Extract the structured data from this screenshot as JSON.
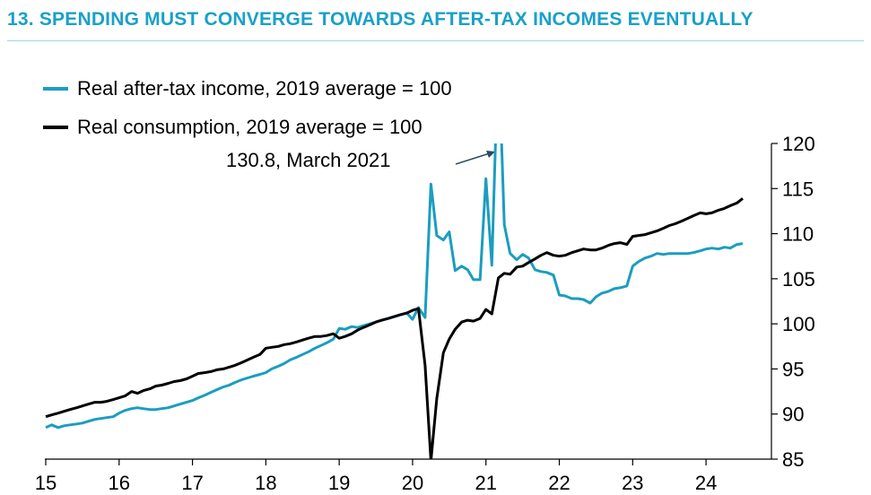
{
  "title": "13. SPENDING MUST CONVERGE TOWARDS AFTER-TAX INCOMES EVENTUALLY",
  "colors": {
    "title": "#1aa0c8",
    "income": "#1b9dc0",
    "consumption": "#000000",
    "axis": "#000000",
    "annotation_arrow": "#2a4a5a"
  },
  "chart_data": {
    "type": "line",
    "title": "13. SPENDING MUST CONVERGE TOWARDS AFTER-TAX INCOMES EVENTUALLY",
    "xlabel": "",
    "ylabel": "",
    "x_ticks": [
      "15",
      "16",
      "17",
      "18",
      "19",
      "20",
      "21",
      "22",
      "23",
      "24"
    ],
    "x_range": [
      2015.0,
      2024.5
    ],
    "ylim": [
      85,
      120
    ],
    "y_ticks": [
      85,
      90,
      95,
      100,
      105,
      110,
      115,
      120
    ],
    "y_axis_side": "right",
    "grid": false,
    "legend_position": "top-left",
    "annotation": {
      "text": "130.8, March 2021",
      "x": 2021.17,
      "y": 130.8
    },
    "series": [
      {
        "name": "Real after-tax income, 2019 average = 100",
        "color": "#1b9dc0",
        "points": [
          [
            2015.0,
            88.5
          ],
          [
            2015.08,
            88.8
          ],
          [
            2015.17,
            88.5
          ],
          [
            2015.25,
            88.7
          ],
          [
            2015.33,
            88.8
          ],
          [
            2015.42,
            88.9
          ],
          [
            2015.5,
            89.0
          ],
          [
            2015.58,
            89.2
          ],
          [
            2015.67,
            89.4
          ],
          [
            2015.75,
            89.5
          ],
          [
            2015.83,
            89.6
          ],
          [
            2015.92,
            89.7
          ],
          [
            2016.0,
            90.1
          ],
          [
            2016.08,
            90.4
          ],
          [
            2016.17,
            90.6
          ],
          [
            2016.25,
            90.7
          ],
          [
            2016.33,
            90.6
          ],
          [
            2016.42,
            90.5
          ],
          [
            2016.5,
            90.5
          ],
          [
            2016.58,
            90.6
          ],
          [
            2016.67,
            90.7
          ],
          [
            2016.75,
            90.9
          ],
          [
            2016.83,
            91.1
          ],
          [
            2016.92,
            91.3
          ],
          [
            2017.0,
            91.5
          ],
          [
            2017.08,
            91.8
          ],
          [
            2017.17,
            92.1
          ],
          [
            2017.25,
            92.4
          ],
          [
            2017.33,
            92.7
          ],
          [
            2017.42,
            93.0
          ],
          [
            2017.5,
            93.2
          ],
          [
            2017.58,
            93.5
          ],
          [
            2017.67,
            93.8
          ],
          [
            2017.75,
            94.0
          ],
          [
            2017.83,
            94.2
          ],
          [
            2017.92,
            94.4
          ],
          [
            2018.0,
            94.6
          ],
          [
            2018.08,
            95.0
          ],
          [
            2018.17,
            95.3
          ],
          [
            2018.25,
            95.6
          ],
          [
            2018.33,
            96.0
          ],
          [
            2018.42,
            96.3
          ],
          [
            2018.5,
            96.6
          ],
          [
            2018.58,
            96.9
          ],
          [
            2018.67,
            97.3
          ],
          [
            2018.75,
            97.6
          ],
          [
            2018.83,
            97.9
          ],
          [
            2018.92,
            98.3
          ],
          [
            2019.0,
            99.5
          ],
          [
            2019.08,
            99.4
          ],
          [
            2019.17,
            99.7
          ],
          [
            2019.25,
            99.6
          ],
          [
            2019.33,
            99.8
          ],
          [
            2019.42,
            100.0
          ],
          [
            2019.5,
            100.2
          ],
          [
            2019.58,
            100.4
          ],
          [
            2019.67,
            100.6
          ],
          [
            2019.75,
            100.8
          ],
          [
            2019.83,
            101.0
          ],
          [
            2019.92,
            101.2
          ],
          [
            2020.0,
            100.5
          ],
          [
            2020.08,
            101.8
          ],
          [
            2020.17,
            100.7
          ],
          [
            2020.25,
            115.5
          ],
          [
            2020.33,
            109.8
          ],
          [
            2020.42,
            109.3
          ],
          [
            2020.5,
            110.2
          ],
          [
            2020.58,
            105.9
          ],
          [
            2020.67,
            106.4
          ],
          [
            2020.75,
            106.0
          ],
          [
            2020.83,
            104.9
          ],
          [
            2020.92,
            104.9
          ],
          [
            2021.0,
            116.1
          ],
          [
            2021.08,
            106.5
          ],
          [
            2021.17,
            130.8
          ],
          [
            2021.25,
            111.0
          ],
          [
            2021.33,
            107.8
          ],
          [
            2021.42,
            107.1
          ],
          [
            2021.5,
            107.7
          ],
          [
            2021.58,
            107.3
          ],
          [
            2021.67,
            106.0
          ],
          [
            2021.75,
            105.8
          ],
          [
            2021.83,
            105.7
          ],
          [
            2021.92,
            105.4
          ],
          [
            2022.0,
            103.2
          ],
          [
            2022.08,
            103.1
          ],
          [
            2022.17,
            102.8
          ],
          [
            2022.25,
            102.8
          ],
          [
            2022.33,
            102.7
          ],
          [
            2022.42,
            102.3
          ],
          [
            2022.5,
            103.0
          ],
          [
            2022.58,
            103.4
          ],
          [
            2022.67,
            103.6
          ],
          [
            2022.75,
            103.9
          ],
          [
            2022.83,
            104.0
          ],
          [
            2022.92,
            104.2
          ],
          [
            2023.0,
            106.4
          ],
          [
            2023.08,
            106.9
          ],
          [
            2023.17,
            107.3
          ],
          [
            2023.25,
            107.5
          ],
          [
            2023.33,
            107.8
          ],
          [
            2023.42,
            107.7
          ],
          [
            2023.5,
            107.8
          ],
          [
            2023.58,
            107.8
          ],
          [
            2023.67,
            107.8
          ],
          [
            2023.75,
            107.8
          ],
          [
            2023.83,
            107.9
          ],
          [
            2023.92,
            108.1
          ],
          [
            2024.0,
            108.3
          ],
          [
            2024.08,
            108.4
          ],
          [
            2024.17,
            108.3
          ],
          [
            2024.25,
            108.5
          ],
          [
            2024.33,
            108.4
          ],
          [
            2024.42,
            108.8
          ],
          [
            2024.5,
            108.9
          ]
        ]
      },
      {
        "name": "Real consumption, 2019 average = 100",
        "color": "#000000",
        "points": [
          [
            2015.0,
            89.7
          ],
          [
            2015.08,
            89.9
          ],
          [
            2015.17,
            90.1
          ],
          [
            2015.25,
            90.3
          ],
          [
            2015.33,
            90.5
          ],
          [
            2015.42,
            90.7
          ],
          [
            2015.5,
            90.9
          ],
          [
            2015.58,
            91.1
          ],
          [
            2015.67,
            91.3
          ],
          [
            2015.75,
            91.3
          ],
          [
            2015.83,
            91.4
          ],
          [
            2015.92,
            91.6
          ],
          [
            2016.0,
            91.8
          ],
          [
            2016.08,
            92.0
          ],
          [
            2016.17,
            92.5
          ],
          [
            2016.25,
            92.3
          ],
          [
            2016.33,
            92.6
          ],
          [
            2016.42,
            92.8
          ],
          [
            2016.5,
            93.1
          ],
          [
            2016.58,
            93.2
          ],
          [
            2016.67,
            93.4
          ],
          [
            2016.75,
            93.6
          ],
          [
            2016.83,
            93.7
          ],
          [
            2016.92,
            93.9
          ],
          [
            2017.0,
            94.2
          ],
          [
            2017.08,
            94.5
          ],
          [
            2017.17,
            94.6
          ],
          [
            2017.25,
            94.7
          ],
          [
            2017.33,
            94.9
          ],
          [
            2017.42,
            95.0
          ],
          [
            2017.5,
            95.2
          ],
          [
            2017.58,
            95.4
          ],
          [
            2017.67,
            95.7
          ],
          [
            2017.75,
            96.0
          ],
          [
            2017.83,
            96.3
          ],
          [
            2017.92,
            96.6
          ],
          [
            2018.0,
            97.3
          ],
          [
            2018.08,
            97.4
          ],
          [
            2018.17,
            97.5
          ],
          [
            2018.25,
            97.7
          ],
          [
            2018.33,
            97.8
          ],
          [
            2018.42,
            98.0
          ],
          [
            2018.5,
            98.2
          ],
          [
            2018.58,
            98.4
          ],
          [
            2018.67,
            98.6
          ],
          [
            2018.75,
            98.6
          ],
          [
            2018.83,
            98.7
          ],
          [
            2018.92,
            98.9
          ],
          [
            2019.0,
            98.4
          ],
          [
            2019.08,
            98.6
          ],
          [
            2019.17,
            98.9
          ],
          [
            2019.25,
            99.3
          ],
          [
            2019.33,
            99.6
          ],
          [
            2019.42,
            99.9
          ],
          [
            2019.5,
            100.2
          ],
          [
            2019.58,
            100.4
          ],
          [
            2019.67,
            100.6
          ],
          [
            2019.75,
            100.8
          ],
          [
            2019.83,
            101.0
          ],
          [
            2019.92,
            101.2
          ],
          [
            2020.0,
            101.5
          ],
          [
            2020.08,
            101.7
          ],
          [
            2020.17,
            95.4
          ],
          [
            2020.25,
            84.8
          ],
          [
            2020.33,
            91.7
          ],
          [
            2020.42,
            96.8
          ],
          [
            2020.5,
            98.3
          ],
          [
            2020.58,
            99.4
          ],
          [
            2020.67,
            100.2
          ],
          [
            2020.75,
            100.4
          ],
          [
            2020.83,
            100.3
          ],
          [
            2020.92,
            100.6
          ],
          [
            2021.0,
            101.6
          ],
          [
            2021.08,
            101.1
          ],
          [
            2021.17,
            105.1
          ],
          [
            2021.25,
            105.6
          ],
          [
            2021.33,
            105.5
          ],
          [
            2021.42,
            106.3
          ],
          [
            2021.5,
            106.4
          ],
          [
            2021.58,
            106.8
          ],
          [
            2021.67,
            107.2
          ],
          [
            2021.75,
            107.6
          ],
          [
            2021.83,
            107.9
          ],
          [
            2021.92,
            107.6
          ],
          [
            2022.0,
            107.5
          ],
          [
            2022.08,
            107.6
          ],
          [
            2022.17,
            107.9
          ],
          [
            2022.25,
            108.1
          ],
          [
            2022.33,
            108.3
          ],
          [
            2022.42,
            108.2
          ],
          [
            2022.5,
            108.2
          ],
          [
            2022.58,
            108.4
          ],
          [
            2022.67,
            108.7
          ],
          [
            2022.75,
            108.9
          ],
          [
            2022.83,
            109.0
          ],
          [
            2022.92,
            108.8
          ],
          [
            2023.0,
            109.7
          ],
          [
            2023.08,
            109.8
          ],
          [
            2023.17,
            109.9
          ],
          [
            2023.25,
            110.1
          ],
          [
            2023.33,
            110.3
          ],
          [
            2023.42,
            110.6
          ],
          [
            2023.5,
            110.9
          ],
          [
            2023.58,
            111.1
          ],
          [
            2023.67,
            111.4
          ],
          [
            2023.75,
            111.7
          ],
          [
            2023.83,
            112.0
          ],
          [
            2023.92,
            112.3
          ],
          [
            2024.0,
            112.2
          ],
          [
            2024.08,
            112.3
          ],
          [
            2024.17,
            112.6
          ],
          [
            2024.25,
            112.8
          ],
          [
            2024.33,
            113.1
          ],
          [
            2024.42,
            113.4
          ],
          [
            2024.5,
            113.9
          ]
        ]
      }
    ]
  }
}
